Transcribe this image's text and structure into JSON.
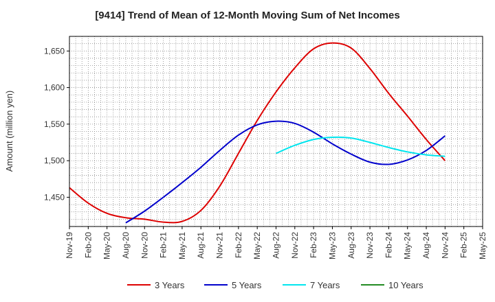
{
  "chart_data": {
    "type": "line",
    "title": "[9414]  Trend of Mean of 12-Month Moving Sum of Net Incomes",
    "xlabel": "",
    "ylabel": "Amount (million yen)",
    "ylim": [
      1410,
      1670
    ],
    "yticks": [
      1450,
      1500,
      1550,
      1600,
      1650
    ],
    "ytick_labels": [
      "1,450",
      "1,500",
      "1,550",
      "1,600",
      "1,650"
    ],
    "x_categories": [
      "Nov-19",
      "Feb-20",
      "May-20",
      "Aug-20",
      "Nov-20",
      "Feb-21",
      "May-21",
      "Aug-21",
      "Nov-21",
      "Feb-22",
      "May-22",
      "Aug-22",
      "Nov-22",
      "Feb-23",
      "May-23",
      "Aug-23",
      "Nov-23",
      "Feb-24",
      "May-24",
      "Aug-24",
      "Nov-24",
      "Feb-25",
      "May-25"
    ],
    "grid": true,
    "legend_position": "bottom",
    "series": [
      {
        "name": "3 Years",
        "color": "#dd0000",
        "points": [
          {
            "x": "Nov-19",
            "y": 1463
          },
          {
            "x": "Feb-20",
            "y": 1442
          },
          {
            "x": "May-20",
            "y": 1428
          },
          {
            "x": "Aug-20",
            "y": 1422
          },
          {
            "x": "Nov-20",
            "y": 1420
          },
          {
            "x": "Feb-21",
            "y": 1416
          },
          {
            "x": "May-21",
            "y": 1417
          },
          {
            "x": "Aug-21",
            "y": 1432
          },
          {
            "x": "Nov-21",
            "y": 1465
          },
          {
            "x": "Feb-22",
            "y": 1510
          },
          {
            "x": "May-22",
            "y": 1555
          },
          {
            "x": "Aug-22",
            "y": 1594
          },
          {
            "x": "Nov-22",
            "y": 1627
          },
          {
            "x": "Feb-23",
            "y": 1653
          },
          {
            "x": "May-23",
            "y": 1661
          },
          {
            "x": "Aug-23",
            "y": 1654
          },
          {
            "x": "Nov-23",
            "y": 1626
          },
          {
            "x": "Feb-24",
            "y": 1592
          },
          {
            "x": "May-24",
            "y": 1561
          },
          {
            "x": "Aug-24",
            "y": 1529
          },
          {
            "x": "Nov-24",
            "y": 1500
          }
        ]
      },
      {
        "name": "5 Years",
        "color": "#0000cc",
        "points": [
          {
            "x": "Aug-20",
            "y": 1415
          },
          {
            "x": "Nov-20",
            "y": 1431
          },
          {
            "x": "Feb-21",
            "y": 1450
          },
          {
            "x": "May-21",
            "y": 1470
          },
          {
            "x": "Aug-21",
            "y": 1491
          },
          {
            "x": "Nov-21",
            "y": 1514
          },
          {
            "x": "Feb-22",
            "y": 1535
          },
          {
            "x": "May-22",
            "y": 1549
          },
          {
            "x": "Aug-22",
            "y": 1554
          },
          {
            "x": "Nov-22",
            "y": 1551
          },
          {
            "x": "Feb-23",
            "y": 1539
          },
          {
            "x": "May-23",
            "y": 1523
          },
          {
            "x": "Aug-23",
            "y": 1509
          },
          {
            "x": "Nov-23",
            "y": 1498
          },
          {
            "x": "Feb-24",
            "y": 1495
          },
          {
            "x": "May-24",
            "y": 1501
          },
          {
            "x": "Aug-24",
            "y": 1514
          },
          {
            "x": "Nov-24",
            "y": 1534
          }
        ]
      },
      {
        "name": "7 Years",
        "color": "#00e5ee",
        "points": [
          {
            "x": "Aug-22",
            "y": 1510
          },
          {
            "x": "Nov-22",
            "y": 1521
          },
          {
            "x": "Feb-23",
            "y": 1529
          },
          {
            "x": "May-23",
            "y": 1532
          },
          {
            "x": "Aug-23",
            "y": 1531
          },
          {
            "x": "Nov-23",
            "y": 1525
          },
          {
            "x": "Feb-24",
            "y": 1518
          },
          {
            "x": "May-24",
            "y": 1512
          },
          {
            "x": "Aug-24",
            "y": 1508
          },
          {
            "x": "Nov-24",
            "y": 1506
          }
        ]
      },
      {
        "name": "10 Years",
        "color": "#228b22",
        "points": []
      }
    ]
  }
}
